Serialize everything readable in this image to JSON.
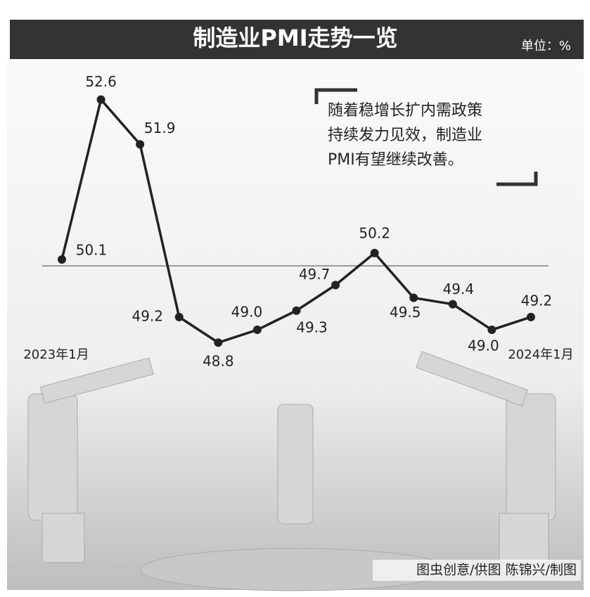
{
  "chart_data": {
    "type": "line",
    "title": "制造业PMI走势一览",
    "unit": "单位：%",
    "annotation": [
      "随着稳增长扩内需政策",
      "持续发力见效，制造业",
      "PMI有望继续改善。"
    ],
    "credit": "图虫创意/供图  陈锦兴/制图",
    "categories": [
      "2023年1月",
      null,
      null,
      null,
      null,
      null,
      null,
      null,
      null,
      null,
      null,
      null,
      "2024年1月"
    ],
    "values": [
      50.1,
      52.6,
      51.9,
      49.2,
      48.8,
      49.0,
      49.3,
      49.7,
      50.2,
      49.5,
      49.4,
      49.0,
      49.2
    ],
    "value_labels": [
      "50.1",
      "52.6",
      "51.9",
      "49.2",
      "48.8",
      "49.0",
      "49.3",
      "49.7",
      "50.2",
      "49.5",
      "49.4",
      "49.0",
      "49.2"
    ],
    "reference_line": 50,
    "color": "#222222",
    "ylim": [
      48,
      53.2
    ]
  }
}
